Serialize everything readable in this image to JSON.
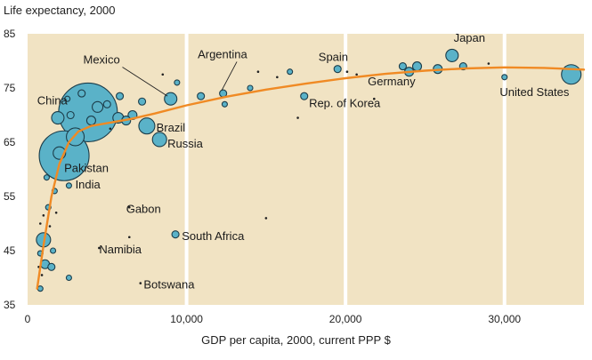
{
  "chart_data": {
    "type": "scatter",
    "ylabel": "Life expectancy, 2000",
    "xlabel": "GDP per capita, 2000, current PPP $",
    "xlim": [
      0,
      35000
    ],
    "ylim": [
      35,
      85
    ],
    "xticks": [
      0,
      10000,
      20000,
      30000
    ],
    "xtick_labels": [
      "0",
      "10,000",
      "20,000",
      "30,000"
    ],
    "yticks": [
      35,
      45,
      55,
      65,
      75,
      85
    ],
    "ytick_labels": [
      "35",
      "45",
      "55",
      "65",
      "75",
      "85"
    ],
    "grid": "vertical lines at x ticks",
    "colors": {
      "background": "#f1e3c3",
      "bubble": "#5ab2c8",
      "bubble_stroke": "#1c3d4a",
      "curve": "#f08a24",
      "grid": "#ffffff"
    },
    "points": [
      {
        "x": 2300,
        "y": 62.5,
        "r": 28,
        "label": "India"
      },
      {
        "x": 3800,
        "y": 70.5,
        "r": 33,
        "label": "China"
      },
      {
        "x": 1000,
        "y": 47.0,
        "r": 8,
        "label": ""
      },
      {
        "x": 2000,
        "y": 63.0,
        "r": 7,
        "label": "Pakistan"
      },
      {
        "x": 3000,
        "y": 66.0,
        "r": 10,
        "label": ""
      },
      {
        "x": 1900,
        "y": 69.5,
        "r": 7,
        "label": ""
      },
      {
        "x": 7500,
        "y": 68.0,
        "r": 9,
        "label": "Brazil"
      },
      {
        "x": 8300,
        "y": 65.5,
        "r": 8,
        "label": "Russia"
      },
      {
        "x": 9000,
        "y": 73.0,
        "r": 7,
        "label": "Mexico"
      },
      {
        "x": 12300,
        "y": 74.0,
        "r": 4,
        "label": "Argentina"
      },
      {
        "x": 9300,
        "y": 48.0,
        "r": 4,
        "label": "South Africa"
      },
      {
        "x": 19500,
        "y": 78.5,
        "r": 4,
        "label": "Spain"
      },
      {
        "x": 17400,
        "y": 73.5,
        "r": 4,
        "label": "Rep. of Korea"
      },
      {
        "x": 24000,
        "y": 78.0,
        "r": 5,
        "label": "Germany"
      },
      {
        "x": 26700,
        "y": 81.0,
        "r": 7,
        "label": "Japan"
      },
      {
        "x": 34200,
        "y": 77.5,
        "r": 11,
        "label": "United States"
      },
      {
        "x": 25800,
        "y": 78.5,
        "r": 5,
        "label": ""
      },
      {
        "x": 24500,
        "y": 79.0,
        "r": 5,
        "label": ""
      },
      {
        "x": 23600,
        "y": 79.0,
        "r": 4,
        "label": ""
      },
      {
        "x": 27400,
        "y": 79.0,
        "r": 4,
        "label": ""
      },
      {
        "x": 6600,
        "y": 70.0,
        "r": 5,
        "label": ""
      },
      {
        "x": 5700,
        "y": 69.5,
        "r": 6,
        "label": ""
      },
      {
        "x": 6200,
        "y": 69.0,
        "r": 5,
        "label": ""
      },
      {
        "x": 4400,
        "y": 71.5,
        "r": 6,
        "label": ""
      },
      {
        "x": 1100,
        "y": 42.5,
        "r": 5,
        "label": ""
      },
      {
        "x": 1500,
        "y": 42.0,
        "r": 4,
        "label": ""
      },
      {
        "x": 800,
        "y": 44.5,
        "r": 3,
        "label": ""
      },
      {
        "x": 1600,
        "y": 45.0,
        "r": 3,
        "label": ""
      },
      {
        "x": 800,
        "y": 38.0,
        "r": 3,
        "label": ""
      },
      {
        "x": 1300,
        "y": 53.0,
        "r": 3,
        "label": ""
      },
      {
        "x": 1700,
        "y": 56.0,
        "r": 3,
        "label": ""
      },
      {
        "x": 1200,
        "y": 58.5,
        "r": 3,
        "label": ""
      },
      {
        "x": 2600,
        "y": 57.0,
        "r": 3,
        "label": ""
      },
      {
        "x": 5000,
        "y": 72.0,
        "r": 4,
        "label": ""
      },
      {
        "x": 5800,
        "y": 73.5,
        "r": 4,
        "label": ""
      },
      {
        "x": 7200,
        "y": 72.5,
        "r": 4,
        "label": ""
      },
      {
        "x": 10900,
        "y": 73.5,
        "r": 4,
        "label": ""
      },
      {
        "x": 12400,
        "y": 72.0,
        "r": 3,
        "label": ""
      },
      {
        "x": 3400,
        "y": 74.0,
        "r": 4,
        "label": ""
      },
      {
        "x": 4000,
        "y": 69.0,
        "r": 5,
        "label": ""
      },
      {
        "x": 2700,
        "y": 70.0,
        "r": 4,
        "label": ""
      },
      {
        "x": 2500,
        "y": 73.0,
        "r": 3,
        "label": ""
      },
      {
        "x": 2600,
        "y": 40.0,
        "r": 3,
        "label": ""
      },
      {
        "x": 9400,
        "y": 76.0,
        "r": 3,
        "label": ""
      },
      {
        "x": 14000,
        "y": 75.0,
        "r": 3,
        "label": ""
      },
      {
        "x": 16500,
        "y": 78.0,
        "r": 3,
        "label": ""
      },
      {
        "x": 30000,
        "y": 77.0,
        "r": 3,
        "label": ""
      }
    ],
    "dots": [
      {
        "x": 6400,
        "y": 53.0
      },
      {
        "x": 6400,
        "y": 47.5
      },
      {
        "x": 4500,
        "y": 45.5
      },
      {
        "x": 7100,
        "y": 39.0
      },
      {
        "x": 15000,
        "y": 51.0
      },
      {
        "x": 17000,
        "y": 69.5
      },
      {
        "x": 14500,
        "y": 78.0
      },
      {
        "x": 15700,
        "y": 77.0
      },
      {
        "x": 20100,
        "y": 78.0
      },
      {
        "x": 21800,
        "y": 73.0
      },
      {
        "x": 20700,
        "y": 77.5
      },
      {
        "x": 29000,
        "y": 79.5
      },
      {
        "x": 8500,
        "y": 77.5
      },
      {
        "x": 5200,
        "y": 67.5
      },
      {
        "x": 800,
        "y": 50.0
      },
      {
        "x": 700,
        "y": 42.0
      },
      {
        "x": 1000,
        "y": 51.5
      },
      {
        "x": 1400,
        "y": 49.5
      },
      {
        "x": 1800,
        "y": 52.0
      },
      {
        "x": 900,
        "y": 40.5
      }
    ],
    "trend": [
      {
        "x": 600,
        "y": 38.0
      },
      {
        "x": 1000,
        "y": 46.0
      },
      {
        "x": 1500,
        "y": 55.0
      },
      {
        "x": 2000,
        "y": 61.0
      },
      {
        "x": 2600,
        "y": 65.0
      },
      {
        "x": 3200,
        "y": 67.0
      },
      {
        "x": 4000,
        "y": 68.0
      },
      {
        "x": 5000,
        "y": 68.5
      },
      {
        "x": 6500,
        "y": 69.3
      },
      {
        "x": 8000,
        "y": 70.3
      },
      {
        "x": 10000,
        "y": 71.8
      },
      {
        "x": 12500,
        "y": 73.4
      },
      {
        "x": 15000,
        "y": 74.7
      },
      {
        "x": 17500,
        "y": 75.8
      },
      {
        "x": 20000,
        "y": 76.8
      },
      {
        "x": 22500,
        "y": 77.6
      },
      {
        "x": 25000,
        "y": 78.2
      },
      {
        "x": 27500,
        "y": 78.6
      },
      {
        "x": 30000,
        "y": 78.8
      },
      {
        "x": 32500,
        "y": 78.7
      },
      {
        "x": 35000,
        "y": 78.4
      }
    ],
    "annotations": [
      {
        "text": "Mexico",
        "x": 3500,
        "y": 79.5,
        "leader_to": [
          8800,
          73.5
        ],
        "anchor": "start"
      },
      {
        "text": "Argentina",
        "x": 10700,
        "y": 80.5,
        "leader_to": [
          12200,
          74.5
        ],
        "anchor": "start"
      },
      {
        "text": "Spain",
        "x": 18300,
        "y": 80.0,
        "leader_to": null,
        "anchor": "start"
      },
      {
        "text": "Japan",
        "x": 26800,
        "y": 83.5,
        "leader_to": null,
        "anchor": "start"
      },
      {
        "text": "Germany",
        "x": 21400,
        "y": 75.5,
        "leader_to": null,
        "anchor": "start"
      },
      {
        "text": "United States",
        "x": 29700,
        "y": 73.5,
        "leader_to": null,
        "anchor": "start"
      },
      {
        "text": "Rep. of Korea",
        "x": 17700,
        "y": 71.5,
        "leader_to": null,
        "anchor": "start"
      },
      {
        "text": "China",
        "x": 600,
        "y": 72.0,
        "leader_to": null,
        "anchor": "start"
      },
      {
        "text": "Brazil",
        "x": 8100,
        "y": 67.0,
        "leader_to": null,
        "anchor": "start"
      },
      {
        "text": "Russia",
        "x": 8800,
        "y": 64.0,
        "leader_to": null,
        "anchor": "start"
      },
      {
        "text": "Pakistan",
        "x": 2300,
        "y": 59.5,
        "leader_to": null,
        "anchor": "start"
      },
      {
        "text": "India",
        "x": 3000,
        "y": 56.5,
        "leader_to": null,
        "anchor": "start"
      },
      {
        "text": "Gabon",
        "x": 6200,
        "y": 52.0,
        "leader_to": null,
        "anchor": "start"
      },
      {
        "text": "South Africa",
        "x": 9700,
        "y": 47.0,
        "leader_to": null,
        "anchor": "start"
      },
      {
        "text": "Namibia",
        "x": 4500,
        "y": 44.5,
        "leader_to": null,
        "anchor": "start"
      },
      {
        "text": "Botswana",
        "x": 7300,
        "y": 38.0,
        "leader_to": null,
        "anchor": "start"
      }
    ]
  }
}
